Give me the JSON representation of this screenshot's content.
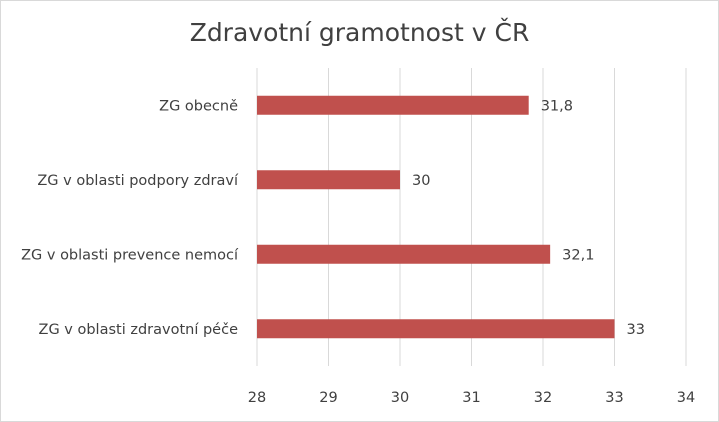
{
  "chart_data": {
    "type": "bar",
    "orientation": "horizontal",
    "title": "Zdravotní gramotnost  v ČR",
    "xlabel": "",
    "ylabel": "",
    "categories": [
      "ZG obecně",
      "ZG v oblasti podpory zdraví",
      "ZG v oblasti prevence nemocí",
      "ZG v oblasti zdravotní péče"
    ],
    "values": [
      31.8,
      30,
      32.1,
      33
    ],
    "data_labels": [
      "31,8",
      "30",
      "32,1",
      "33"
    ],
    "xlim": [
      28,
      34
    ],
    "ticks": [
      "28",
      "29",
      "30",
      "31",
      "32",
      "33",
      "34"
    ],
    "grid": "vertical",
    "legend": "none",
    "bar_color": "#c0504d",
    "grid_color": "#d9d9d9"
  }
}
